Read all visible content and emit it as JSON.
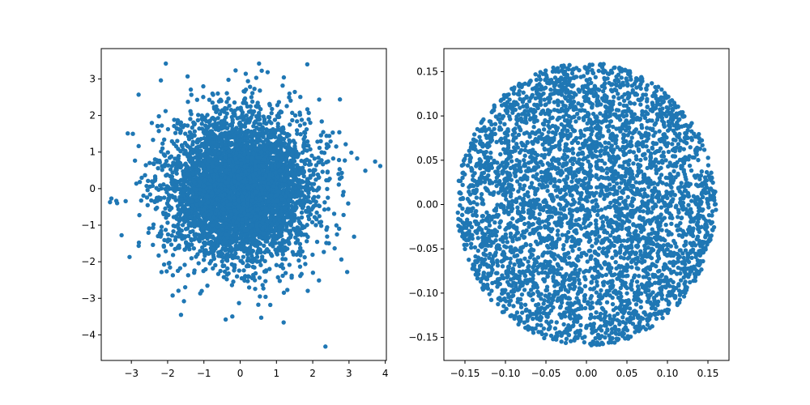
{
  "chart_data": [
    {
      "type": "scatter",
      "title": "",
      "xlabel": "",
      "ylabel": "",
      "xlim": [
        -3.83,
        4.03
      ],
      "ylim": [
        -4.7,
        3.83
      ],
      "xticks": [
        -3,
        -2,
        -1,
        0,
        1,
        2,
        3,
        4
      ],
      "yticks": [
        -4,
        -3,
        -2,
        -1,
        0,
        1,
        2,
        3
      ],
      "tick_labels_x": [
        "−3",
        "−2",
        "−1",
        "0",
        "1",
        "2",
        "3",
        "4"
      ],
      "tick_labels_y": [
        "−4",
        "−3",
        "−2",
        "−1",
        "0",
        "1",
        "2",
        "3"
      ],
      "grid": false,
      "marker_color": "#1f77b4",
      "distribution": "2D standard normal, about 5000 points",
      "outliers": [
        {
          "x": -3.55,
          "y": -0.27
        },
        {
          "x": -3.1,
          "y": 1.51
        },
        {
          "x": -3.05,
          "y": -1.87
        },
        {
          "x": -2.8,
          "y": 2.57
        },
        {
          "x": -2.05,
          "y": 3.42
        },
        {
          "x": -1.45,
          "y": 3.07
        },
        {
          "x": -0.4,
          "y": -3.58
        },
        {
          "x": 0.52,
          "y": 3.42
        },
        {
          "x": 0.58,
          "y": -3.53
        },
        {
          "x": 1.85,
          "y": 3.4
        },
        {
          "x": 2.75,
          "y": 2.44
        },
        {
          "x": 3.45,
          "y": 0.49
        },
        {
          "x": 3.72,
          "y": 0.74
        },
        {
          "x": 2.35,
          "y": -4.32
        },
        {
          "x": -1.55,
          "y": -3.08
        },
        {
          "x": 2.95,
          "y": -2.28
        }
      ]
    },
    {
      "type": "scatter",
      "title": "",
      "xlabel": "",
      "ylabel": "",
      "xlim": [
        -0.176,
        0.176
      ],
      "ylim": [
        -0.176,
        0.176
      ],
      "xticks": [
        -0.15,
        -0.1,
        -0.05,
        0.0,
        0.05,
        0.1,
        0.15
      ],
      "yticks": [
        -0.15,
        -0.1,
        -0.05,
        0.0,
        0.05,
        0.1,
        0.15
      ],
      "tick_labels_x": [
        "−0.15",
        "−0.10",
        "−0.05",
        "0.00",
        "0.05",
        "0.10",
        "0.15"
      ],
      "tick_labels_y": [
        "−0.15",
        "−0.10",
        "−0.05",
        "0.00",
        "0.05",
        "0.10",
        "0.15"
      ],
      "grid": false,
      "marker_color": "#1f77b4",
      "distribution": "uniform in disk of radius 0.16 centered at (0, 0), about 5000 points"
    }
  ]
}
